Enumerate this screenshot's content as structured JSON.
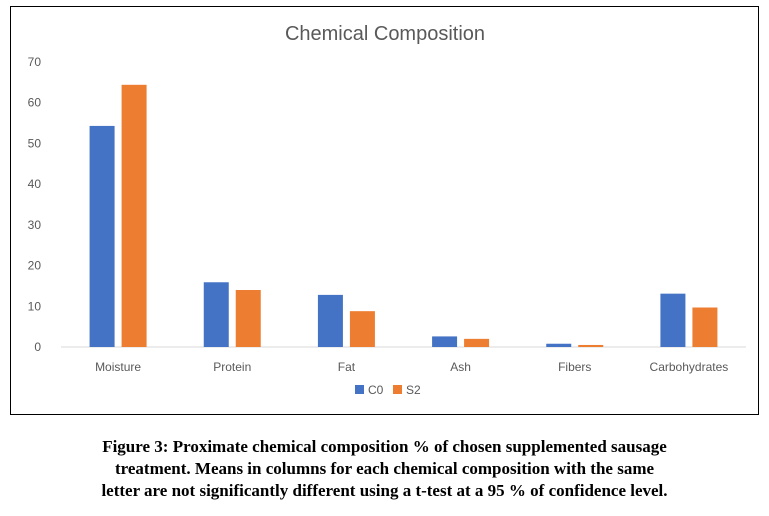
{
  "chart_data": {
    "type": "bar",
    "title": "Chemical Composition",
    "categories": [
      "Moisture",
      "Protein",
      "Fat",
      "Ash",
      "Fibers",
      "Carbohydrates"
    ],
    "series": [
      {
        "name": "C0",
        "color": "#4472C4",
        "values": [
          54.3,
          15.9,
          12.8,
          2.6,
          0.8,
          13.1
        ]
      },
      {
        "name": "S2",
        "color": "#ED7D31",
        "values": [
          64.4,
          14.0,
          8.8,
          2.0,
          0.5,
          9.7
        ]
      }
    ],
    "yticks": [
      0,
      10,
      20,
      30,
      40,
      50,
      60,
      70
    ],
    "ylim": [
      0,
      70
    ],
    "grid": false,
    "legend_position": "bottom"
  },
  "caption": {
    "lines": [
      "Figure 3: Proximate chemical composition % of chosen supplemented sausage",
      "treatment. Means in columns for each chemical composition with the same",
      "letter are not significantly different using a t-test at a 95 % of confidence level."
    ]
  }
}
